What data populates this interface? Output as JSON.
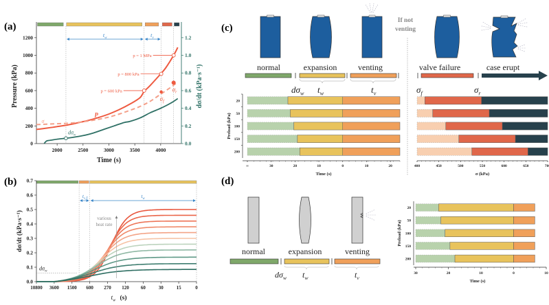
{
  "colors": {
    "normal": "#7fa86a",
    "expansion": "#e8c35c",
    "venting": "#f0a05a",
    "valve_failure": "#e0674a",
    "case_erupt": "#27414c",
    "pressure": "#ee5a40",
    "sigma": "#f4a08a",
    "dsigma": "#2e7065",
    "blue_ann": "#3a86c8",
    "cell_blue": "#1d5e9e",
    "cell_gray": "#d0d0d0",
    "light_green": "#b8d2ac",
    "light_peach": "#f8cfb0"
  },
  "chart_data": [
    {
      "id": "a",
      "panel_label": "(a)",
      "type": "line",
      "xlabel": "Time (s)",
      "ylabel": "Pressure (kPa)",
      "y2label": "dσ/dt (kPa·s⁻¹)",
      "xlim": [
        1600,
        4400
      ],
      "ylim": [
        0,
        1300
      ],
      "y2lim": [
        0,
        1.3
      ],
      "xticks": [
        2000,
        2500,
        3000,
        3500,
        4000
      ],
      "yticks": [
        0,
        200,
        400,
        600,
        800,
        1000,
        1200
      ],
      "y2ticks": [
        0.0,
        0.2,
        0.4,
        0.6,
        0.8,
        1.0,
        1.2
      ],
      "series": [
        {
          "name": "p",
          "label": "P",
          "axis": "left",
          "style": "solid",
          "x": [
            1600,
            1800,
            2000,
            2200,
            2400,
            2600,
            2800,
            3000,
            3200,
            3400,
            3600,
            3680,
            3800,
            4000,
            4100,
            4250,
            4330
          ],
          "y": [
            160,
            175,
            192,
            210,
            235,
            262,
            295,
            335,
            385,
            445,
            520,
            590,
            660,
            790,
            860,
            1000,
            1090
          ]
        },
        {
          "name": "sigma",
          "label": "σ",
          "axis": "left",
          "style": "dashed",
          "x": [
            1600,
            1800,
            2000,
            2200,
            2400,
            2600,
            2800,
            3000,
            3200,
            3400,
            3600,
            3800,
            4000,
            4200,
            4330
          ],
          "y": [
            215,
            220,
            225,
            230,
            240,
            255,
            275,
            300,
            335,
            375,
            420,
            480,
            560,
            640,
            700
          ]
        },
        {
          "name": "dsigma_dt",
          "label": "dσw",
          "axis": "right",
          "style": "solid",
          "x": [
            1750,
            1800,
            1900,
            2000,
            2170,
            2300,
            2500,
            2700,
            2900,
            3100,
            3300,
            3400,
            3600,
            3800,
            4000,
            4200,
            4330
          ],
          "y": [
            0.0,
            0.03,
            0.04,
            0.05,
            0.06,
            0.07,
            0.09,
            0.12,
            0.16,
            0.2,
            0.24,
            0.25,
            0.29,
            0.35,
            0.4,
            0.46,
            0.51
          ]
        }
      ],
      "markers": [
        {
          "label": "p = 600 kPa",
          "x": 3680,
          "y": 600,
          "kind": "open"
        },
        {
          "label": "p = 800 kPa",
          "x": 4010,
          "y": 790,
          "kind": "open"
        },
        {
          "label": "p = 1 MPa",
          "x": 4250,
          "y": 1000,
          "kind": "open"
        },
        {
          "label": "σf",
          "x": 4010,
          "y": 585,
          "kind": "filled"
        },
        {
          "label": "σr",
          "x": 4250,
          "y": 690,
          "kind": "filled"
        },
        {
          "label": "dσw",
          "x": 2170,
          "y2": 0.06,
          "kind": "open-green"
        }
      ],
      "vlines": [
        2170,
        3680,
        4010,
        4250
      ],
      "spans": [
        {
          "label": "tw",
          "from": 2170,
          "to": 3680
        },
        {
          "label": "tv",
          "from": 3680,
          "to": 4010
        }
      ],
      "stage_bars": [
        {
          "stage": "normal",
          "from": 1620,
          "to": 2120
        },
        {
          "stage": "expansion",
          "from": 2180,
          "to": 3640
        },
        {
          "stage": "venting",
          "from": 3700,
          "to": 3960
        },
        {
          "stage": "valve_failure",
          "from": 4030,
          "to": 4220
        },
        {
          "stage": "case_erupt",
          "from": 4260,
          "to": 4360
        }
      ]
    },
    {
      "id": "b",
      "panel_label": "(b)",
      "type": "line",
      "xlabel": "tw (s)",
      "ylabel": "dσ/dt (kPa·s⁻¹)",
      "ylim": [
        0,
        0.7
      ],
      "yticks": [
        0.0,
        0.1,
        0.2,
        0.3,
        0.4,
        0.5,
        0.6,
        0.7
      ],
      "xticks": [
        "10800",
        "3600",
        "1500",
        "600",
        "270",
        "120",
        "60",
        "30",
        "15",
        "0"
      ],
      "annotation": "various heat rate",
      "hline_label": "dσw",
      "hline_value": 0.06,
      "spans": [
        {
          "label": "tv,T",
          "from_idx": 2.4,
          "to_idx": 3.0
        },
        {
          "label": "tw",
          "from_idx": 3.0,
          "to_idx": 9.0
        }
      ],
      "stage_bars": [
        {
          "stage": "normal",
          "from_idx": 0.0,
          "to_idx": 2.35
        },
        {
          "stage": "venting",
          "from_idx": 2.4,
          "to_idx": 2.95
        },
        {
          "stage": "expansion",
          "from_idx": 3.0,
          "to_idx": 9.0
        }
      ],
      "series_plateaus": [
        0.5,
        0.46,
        0.42,
        0.38,
        0.34,
        0.3,
        0.26,
        0.22,
        0.17,
        0.125,
        0.085
      ],
      "series_colors": [
        "#e8553c",
        "#ea6448",
        "#ed7558",
        "#f08a6a",
        "#f3a386",
        "#f6c3a6",
        "#bcd3bd",
        "#8fb8a4",
        "#5f9987",
        "#3f7e70",
        "#2e6e62"
      ]
    },
    {
      "id": "c-left",
      "panel_label": "(c)",
      "type": "bar",
      "xlabel": "Time (s)",
      "ylabel": "Preload (kPa)",
      "categories": [
        "20",
        "50",
        "100",
        "150",
        "200"
      ],
      "xticks": [
        "∞",
        "30",
        "20",
        "10",
        "0",
        "10",
        "20"
      ],
      "series": [
        {
          "name": "normal",
          "start": [
            -40,
            -40,
            -40,
            -40,
            -40
          ],
          "end": [
            -23,
            -22,
            -20.5,
            -19,
            -18
          ],
          "style": "dashed-light"
        },
        {
          "name": "expansion (tw)",
          "start": [
            -23,
            -22,
            -20.5,
            -19,
            -18
          ],
          "end": [
            0,
            0,
            0,
            0,
            0
          ]
        },
        {
          "name": "venting (tv)",
          "start": [
            0,
            0,
            0,
            0,
            0
          ],
          "end": [
            24,
            24,
            24,
            24,
            24
          ]
        }
      ]
    },
    {
      "id": "c-right",
      "type": "bar",
      "xlabel": "σ (kPa)",
      "xlim": [
        400,
        700
      ],
      "xticks": [
        "400",
        "450",
        "500",
        "550",
        "600",
        "650",
        "700"
      ],
      "categories": [
        "20",
        "50",
        "100",
        "150",
        "200"
      ],
      "series": [
        {
          "name": "pre",
          "start": [
            400,
            400,
            400,
            400,
            400
          ],
          "end": [
            418,
            436,
            466,
            496,
            526
          ],
          "style": "dashed-light"
        },
        {
          "name": "valve failure",
          "start": [
            418,
            436,
            466,
            496,
            526
          ],
          "end": [
            548,
            566,
            596,
            626,
            655
          ]
        },
        {
          "name": "case erupt",
          "start": [
            548,
            566,
            596,
            626,
            655
          ],
          "end": [
            700,
            700,
            700,
            700,
            700
          ]
        }
      ]
    },
    {
      "id": "d",
      "panel_label": "(d)",
      "type": "bar",
      "xlabel": "Time (s)",
      "ylabel": "Preload (kPa)",
      "categories": [
        "20",
        "50",
        "100",
        "150",
        "200"
      ],
      "xlim": [
        30,
        -10
      ],
      "xticks": [
        "30",
        "20",
        "10",
        "0",
        "10"
      ],
      "series": [
        {
          "name": "normal",
          "start": [
            30,
            30,
            30,
            30,
            30
          ],
          "end": [
            23,
            22.3,
            21,
            19.5,
            18
          ],
          "style": "dashed-light"
        },
        {
          "name": "expansion (tw)",
          "start": [
            23,
            22.3,
            21,
            19.5,
            18
          ],
          "end": [
            0,
            0,
            0,
            0,
            0
          ]
        },
        {
          "name": "venting (tv)",
          "start": [
            0,
            0,
            0,
            0,
            0
          ],
          "end": [
            -6.5,
            -6.5,
            -6.5,
            -6.5,
            -6.5
          ]
        }
      ]
    }
  ],
  "diagram_c": {
    "stages": [
      "normal",
      "expansion",
      "venting",
      "valve failure",
      "case erupt"
    ],
    "if_not_venting": [
      "If not",
      "venting"
    ],
    "sym_dsigma": "dσ",
    "sym_dsigma_sub": "w",
    "sym_tw": "t",
    "sym_tw_sub": "w",
    "sym_tv": "t",
    "sym_tv_sub": "v",
    "sym_sf": "σ",
    "sym_sf_sub": "f",
    "sym_sr": "σ",
    "sym_sr_sub": "r"
  },
  "diagram_d": {
    "stages": [
      "normal",
      "expansion",
      "venting"
    ]
  }
}
